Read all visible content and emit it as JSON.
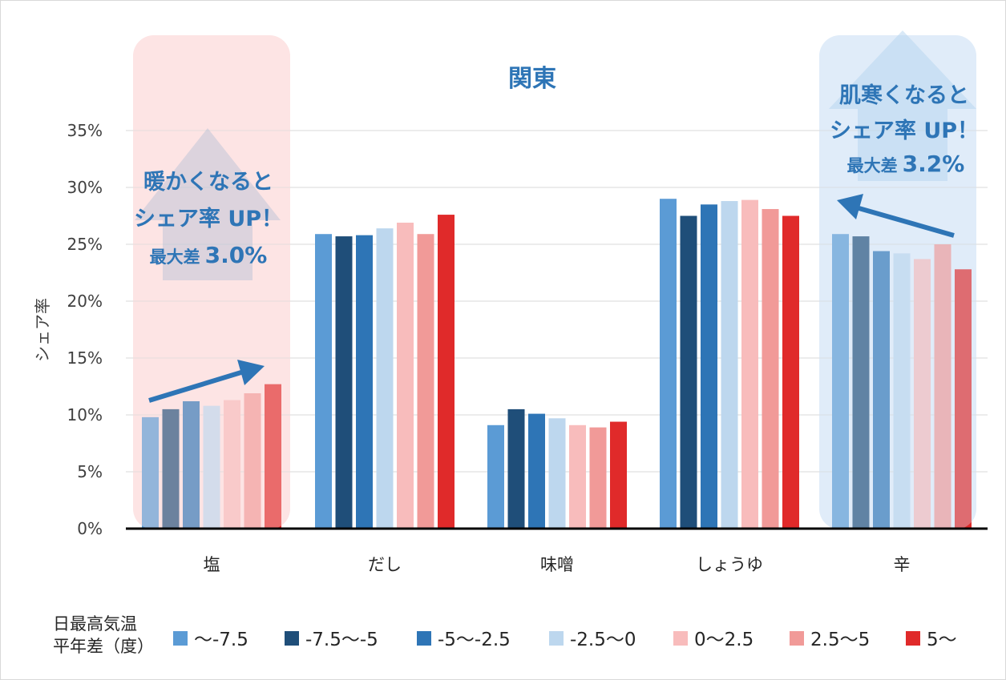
{
  "chart_data": {
    "type": "bar",
    "title": "関東",
    "ylabel": "シェア率",
    "xlabel": "",
    "ylim": [
      0,
      35
    ],
    "yticks": [
      "0%",
      "5%",
      "10%",
      "15%",
      "20%",
      "25%",
      "30%",
      "35%"
    ],
    "categories": [
      "塩",
      "だし",
      "味噌",
      "しょうゆ",
      "辛"
    ],
    "legend_title": [
      "日最高気温",
      "平年差（度）"
    ],
    "series": [
      {
        "name": "〜-7.5",
        "color": "#5b9bd5",
        "values": [
          9.8,
          25.9,
          9.1,
          29.0,
          25.9
        ]
      },
      {
        "name": "-7.5〜-5",
        "color": "#1f4e79",
        "values": [
          10.5,
          25.7,
          10.5,
          27.5,
          25.7
        ]
      },
      {
        "name": "-5〜-2.5",
        "color": "#2e75b6",
        "values": [
          11.2,
          25.8,
          10.1,
          28.5,
          24.4
        ]
      },
      {
        "name": "-2.5〜0",
        "color": "#bdd7ee",
        "values": [
          10.8,
          26.4,
          9.7,
          28.8,
          24.2
        ]
      },
      {
        "name": "0〜2.5",
        "color": "#f8bcbc",
        "values": [
          11.3,
          26.9,
          9.1,
          28.9,
          23.7
        ]
      },
      {
        "name": "2.5〜5",
        "color": "#f19a98",
        "values": [
          11.9,
          25.9,
          8.9,
          28.1,
          25.0
        ]
      },
      {
        "name": "5〜",
        "color": "#e02a2a",
        "values": [
          12.7,
          27.6,
          9.4,
          27.5,
          22.8
        ]
      }
    ],
    "annotations": [
      {
        "category": "塩",
        "lines": [
          "暖かくなると",
          "シェア率 UP！"
        ],
        "diff_label": "最大差",
        "diff_value": "3.0%",
        "highlight": "#fde4e4"
      },
      {
        "category": "辛",
        "lines": [
          "肌寒くなると",
          "シェア率 UP！"
        ],
        "diff_label": "最大差",
        "diff_value": "3.2%",
        "highlight": "#e3eefa"
      }
    ]
  },
  "colors": {
    "title": "#2e75b6",
    "grid": "#d9d9d9",
    "axis": "#000000"
  }
}
